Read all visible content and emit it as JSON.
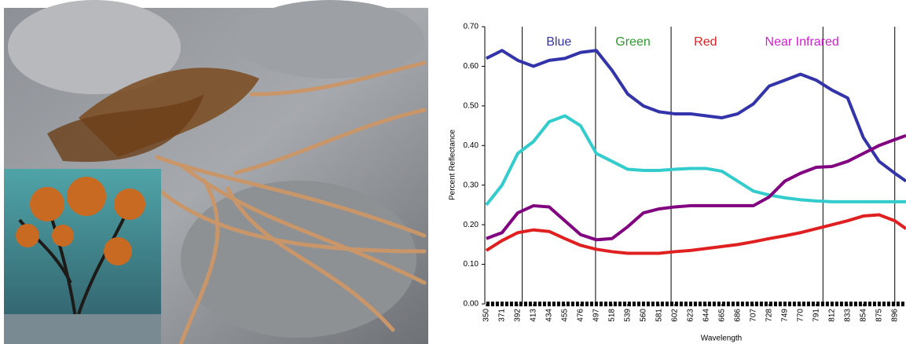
{
  "chart_data": {
    "type": "line",
    "y_label": "Percent Reflectance",
    "x_label": "Wavelength",
    "x": [
      350,
      371,
      392,
      413,
      434,
      455,
      476,
      497,
      518,
      539,
      560,
      581,
      602,
      623,
      644,
      665,
      686,
      707,
      728,
      749,
      770,
      791,
      812,
      833,
      854,
      875,
      896,
      911
    ],
    "xlim": [
      348,
      911
    ],
    "xticks": [
      350,
      371,
      392,
      413,
      434,
      455,
      476,
      497,
      518,
      539,
      560,
      581,
      602,
      623,
      644,
      665,
      686,
      707,
      728,
      749,
      770,
      791,
      812,
      833,
      854,
      875,
      896
    ],
    "ylim": [
      0,
      0.7
    ],
    "yticks": [
      {
        "value": 0,
        "label": "0.00"
      },
      {
        "value": 0.1,
        "label": "0.10"
      },
      {
        "value": 0.2,
        "label": "0.20"
      },
      {
        "value": 0.3,
        "label": "0.30"
      },
      {
        "value": 0.4,
        "label": "0.40"
      },
      {
        "value": 0.5,
        "label": "0.50"
      },
      {
        "value": 0.6,
        "label": "0.60"
      },
      {
        "value": 0.7,
        "label": "0.70"
      }
    ],
    "vlines": [
      398,
      496,
      597,
      800,
      896
    ],
    "bands": [
      {
        "label": "Blue",
        "color": "#3333aa",
        "x": 447
      },
      {
        "label": "Green",
        "color": "#2e9a2e",
        "x": 546
      },
      {
        "label": "Red",
        "color": "#e02020",
        "x": 643
      },
      {
        "label": "Near Infrared",
        "color": "#cc22cc",
        "x": 772
      }
    ],
    "series": [
      {
        "color": "#3333aa",
        "values": [
          0.62,
          0.64,
          0.615,
          0.6,
          0.615,
          0.62,
          0.635,
          0.64,
          0.59,
          0.53,
          0.5,
          0.485,
          0.48,
          0.48,
          0.475,
          0.47,
          0.48,
          0.505,
          0.55,
          0.565,
          0.58,
          0.565,
          0.54,
          0.52,
          0.42,
          0.36,
          0.33,
          0.31
        ]
      },
      {
        "color": "#33cccc",
        "values": [
          0.25,
          0.3,
          0.38,
          0.41,
          0.46,
          0.475,
          0.45,
          0.38,
          0.36,
          0.34,
          0.337,
          0.337,
          0.34,
          0.342,
          0.342,
          0.335,
          0.31,
          0.285,
          0.275,
          0.268,
          0.263,
          0.26,
          0.258,
          0.258,
          0.258,
          0.258,
          0.258,
          0.258
        ]
      },
      {
        "color": "#800080",
        "values": [
          0.165,
          0.18,
          0.23,
          0.248,
          0.245,
          0.21,
          0.175,
          0.162,
          0.165,
          0.195,
          0.23,
          0.24,
          0.245,
          0.248,
          0.248,
          0.248,
          0.248,
          0.248,
          0.27,
          0.31,
          0.33,
          0.345,
          0.347,
          0.36,
          0.38,
          0.4,
          0.415,
          0.425
        ]
      },
      {
        "color": "#e02020",
        "values": [
          0.135,
          0.16,
          0.18,
          0.187,
          0.183,
          0.165,
          0.148,
          0.138,
          0.132,
          0.128,
          0.128,
          0.128,
          0.132,
          0.135,
          0.14,
          0.145,
          0.15,
          0.157,
          0.165,
          0.172,
          0.18,
          0.19,
          0.2,
          0.21,
          0.222,
          0.225,
          0.21,
          0.19
        ]
      },
      {
        "color": "#000000",
        "dashed": true,
        "values": [
          0,
          0,
          0,
          0,
          0,
          0,
          0,
          0,
          0,
          0,
          0,
          0,
          0,
          0,
          0,
          0,
          0,
          0,
          0,
          0,
          0,
          0,
          0,
          0,
          0,
          0,
          0,
          0
        ]
      }
    ]
  }
}
